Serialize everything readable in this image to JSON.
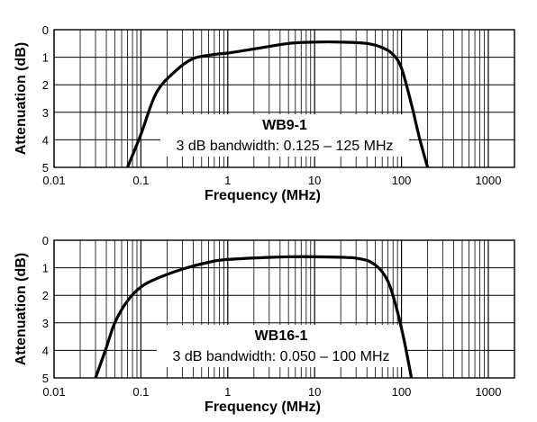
{
  "chart_data": [
    {
      "type": "line",
      "xscale": "log",
      "xlim": [
        0.01,
        2000
      ],
      "ylim": [
        0,
        5
      ],
      "y_inverted": true,
      "xlabel": "Frequency (MHz)",
      "ylabel": "Attenuation (dB)",
      "x_ticks": [
        "0.01",
        "0.1",
        "1",
        "10",
        "100",
        "1000"
      ],
      "y_ticks": [
        "0",
        "1",
        "2",
        "3",
        "4",
        "5"
      ],
      "grid": true,
      "annotation_title": "WB9-1",
      "annotation_text": "3 dB bandwidth: 0.125 – 125 MHz",
      "series": [
        {
          "x": [
            0.07,
            0.1,
            0.15,
            0.25,
            0.4,
            0.7,
            1,
            2,
            5,
            10,
            20,
            40,
            60,
            80,
            100,
            130,
            160,
            200
          ],
          "y": [
            5.0,
            3.8,
            2.3,
            1.5,
            1.05,
            0.9,
            0.85,
            0.7,
            0.5,
            0.45,
            0.45,
            0.5,
            0.65,
            0.9,
            1.4,
            2.7,
            3.9,
            5.0
          ]
        }
      ]
    },
    {
      "type": "line",
      "xscale": "log",
      "xlim": [
        0.01,
        2000
      ],
      "ylim": [
        0,
        5
      ],
      "y_inverted": true,
      "xlabel": "Frequency (MHz)",
      "ylabel": "Attenuation (dB)",
      "x_ticks": [
        "0.01",
        "0.1",
        "1",
        "10",
        "100",
        "1000"
      ],
      "y_ticks": [
        "0",
        "1",
        "2",
        "3",
        "4",
        "5"
      ],
      "grid": true,
      "annotation_title": "WB16-1",
      "annotation_text": "3 dB bandwidth: 0.050 – 100 MHz",
      "series": [
        {
          "x": [
            0.03,
            0.04,
            0.05,
            0.07,
            0.1,
            0.15,
            0.3,
            0.6,
            1,
            3,
            5,
            10,
            30,
            50,
            70,
            90,
            110,
            130
          ],
          "y": [
            5.0,
            3.9,
            3.0,
            2.2,
            1.7,
            1.4,
            1.05,
            0.8,
            0.7,
            0.62,
            0.6,
            0.6,
            0.65,
            0.9,
            1.5,
            2.6,
            3.8,
            5.0
          ]
        }
      ]
    }
  ]
}
